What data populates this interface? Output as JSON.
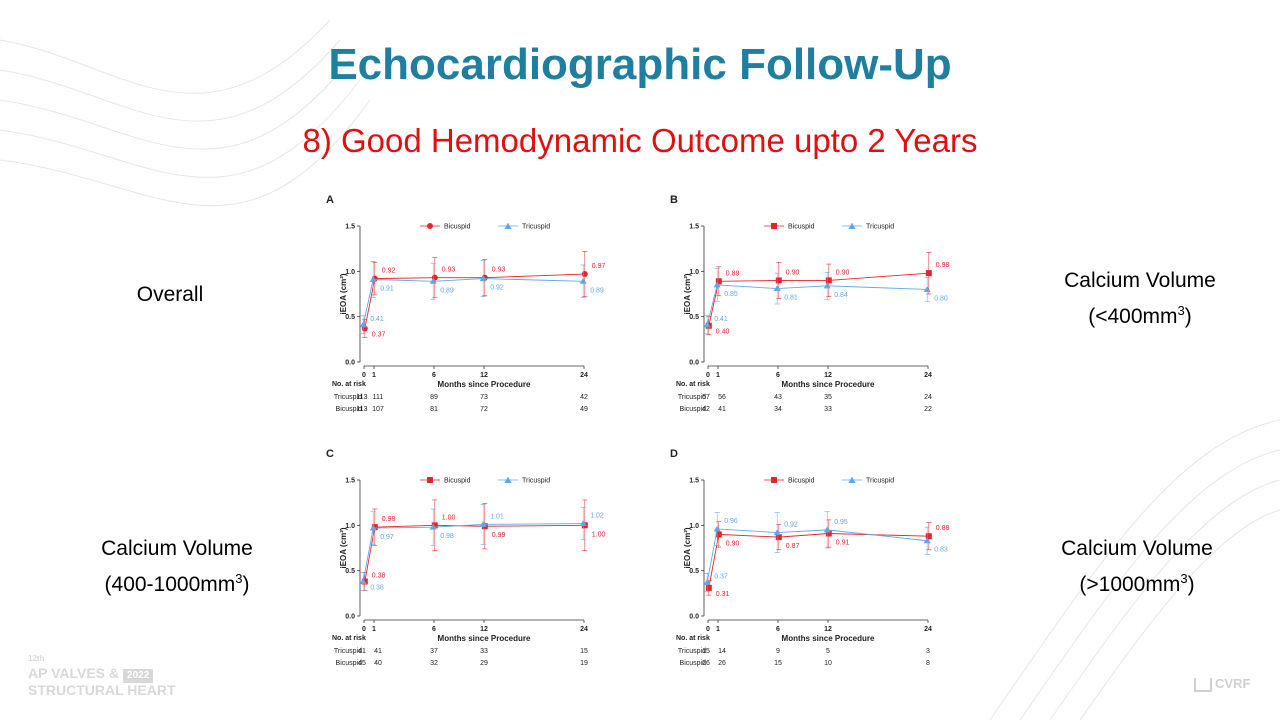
{
  "slide": {
    "title": "Echocardiographic Follow-Up",
    "subtitle": "8) Good Hemodynamic Outcome upto 2 Years"
  },
  "labels": {
    "overall": "Overall",
    "b_line1": "Calcium Volume",
    "b_pre": "(<400mm",
    "b_sup": "3",
    "b_post": ")",
    "c_line1": "Calcium Volume",
    "c_pre": "(400-1000mm",
    "c_sup": "3",
    "c_post": ")",
    "d_line1": "Calcium Volume",
    "d_pre": "(>1000mm",
    "d_sup": "3",
    "d_post": ")"
  },
  "branding": {
    "event_edition": "12th",
    "event_name_1": "AP VALVES &",
    "event_year": "2022",
    "event_name_2": "STRUCTURAL HEART",
    "cvrf": "CVRF"
  },
  "colors": {
    "bicuspid": "#e8232a",
    "tricuspid": "#5ea8e8",
    "title": "#1f7fa0",
    "subtitle": "#e01010"
  },
  "chart_data": [
    {
      "panel": "A",
      "type": "line",
      "ylabel": "iEOA (cm²)",
      "xlabel": "Months since Procedure",
      "x": [
        0,
        1,
        6,
        12,
        24
      ],
      "yticks": [
        "0.0",
        "0.5",
        "1.0",
        "1.5"
      ],
      "ylim": [
        0,
        1.5
      ],
      "marker_bicuspid": "circle",
      "series": [
        {
          "name": "Bicuspid",
          "values": [
            0.37,
            0.92,
            0.93,
            0.93,
            0.97
          ],
          "err": [
            0.1,
            0.18,
            0.22,
            0.2,
            0.25
          ],
          "labels": [
            "0.37",
            "0.92",
            "0.93",
            "0.93",
            "0.97"
          ]
        },
        {
          "name": "Tricuspid",
          "values": [
            0.41,
            0.91,
            0.89,
            0.92,
            0.89
          ],
          "err": [
            0.1,
            0.2,
            0.2,
            0.2,
            0.18
          ],
          "labels": [
            "0.41",
            "0.91",
            "0.89",
            "0.92",
            "0.89"
          ]
        }
      ],
      "risk_title": "No. at risk",
      "risk": [
        {
          "name": "Tricuspid",
          "values": [
            "113",
            "111",
            "89",
            "73",
            "42"
          ]
        },
        {
          "name": "Bicuspid",
          "values": [
            "113",
            "107",
            "81",
            "72",
            "49"
          ]
        }
      ]
    },
    {
      "panel": "B",
      "type": "line",
      "ylabel": "iEOA (cm²)",
      "xlabel": "Months since Procedure",
      "x": [
        0,
        1,
        6,
        12,
        24
      ],
      "yticks": [
        "0.0",
        "0.5",
        "1.0",
        "1.5"
      ],
      "ylim": [
        0,
        1.5
      ],
      "marker_bicuspid": "square",
      "series": [
        {
          "name": "Bicuspid",
          "values": [
            0.4,
            0.89,
            0.9,
            0.9,
            0.98
          ],
          "err": [
            0.1,
            0.16,
            0.2,
            0.18,
            0.23
          ],
          "labels": [
            "0.40",
            "0.89",
            "0.90",
            "0.90",
            "0.98"
          ]
        },
        {
          "name": "Tricuspid",
          "values": [
            0.41,
            0.85,
            0.81,
            0.84,
            0.8
          ],
          "err": [
            0.1,
            0.18,
            0.17,
            0.15,
            0.13
          ],
          "labels": [
            "0.41",
            "0.85",
            "0.81",
            "0.84",
            "0.80"
          ]
        }
      ],
      "risk_title": "No. at risk",
      "risk": [
        {
          "name": "Tricuspid",
          "values": [
            "57",
            "56",
            "43",
            "35",
            "24"
          ]
        },
        {
          "name": "Bicuspid",
          "values": [
            "42",
            "41",
            "34",
            "33",
            "22"
          ]
        }
      ]
    },
    {
      "panel": "C",
      "type": "line",
      "ylabel": "iEOA (cm²)",
      "xlabel": "Months since Procedure",
      "x": [
        0,
        1,
        6,
        12,
        24
      ],
      "yticks": [
        "0.0",
        "0.5",
        "1.0",
        "1.5"
      ],
      "ylim": [
        0,
        1.5
      ],
      "marker_bicuspid": "square",
      "series": [
        {
          "name": "Bicuspid",
          "values": [
            0.38,
            0.98,
            1.0,
            0.99,
            1.0
          ],
          "err": [
            0.1,
            0.2,
            0.28,
            0.25,
            0.28
          ],
          "labels": [
            "0.38",
            "0.98",
            "1.00",
            "0.99",
            "1.00"
          ]
        },
        {
          "name": "Tricuspid",
          "values": [
            0.38,
            0.97,
            0.98,
            1.01,
            1.02
          ],
          "err": [
            0.1,
            0.18,
            0.2,
            0.22,
            0.18
          ],
          "labels": [
            "0.38",
            "0.97",
            "0.98",
            "1.01",
            "1.02"
          ]
        }
      ],
      "risk_title": "No. at risk",
      "risk": [
        {
          "name": "Tricuspid",
          "values": [
            "41",
            "41",
            "37",
            "33",
            "15"
          ]
        },
        {
          "name": "Bicuspid",
          "values": [
            "45",
            "40",
            "32",
            "29",
            "19"
          ]
        }
      ]
    },
    {
      "panel": "D",
      "type": "line",
      "ylabel": "iEOA (cm²)",
      "xlabel": "Months since Procedure",
      "x": [
        0,
        1,
        6,
        12,
        24
      ],
      "yticks": [
        "0.0",
        "0.5",
        "1.0",
        "1.5"
      ],
      "ylim": [
        0,
        1.5
      ],
      "marker_bicuspid": "square",
      "series": [
        {
          "name": "Bicuspid",
          "values": [
            0.31,
            0.9,
            0.87,
            0.91,
            0.88
          ],
          "err": [
            0.08,
            0.14,
            0.14,
            0.15,
            0.15
          ],
          "labels": [
            "0.31",
            "0.90",
            "0.87",
            "0.91",
            "0.88"
          ]
        },
        {
          "name": "Tricuspid",
          "values": [
            0.37,
            0.96,
            0.92,
            0.95,
            0.83
          ],
          "err": [
            0.1,
            0.18,
            0.22,
            0.2,
            0.15
          ],
          "labels": [
            "0.37",
            "0.96",
            "0.92",
            "0.95",
            "0.83"
          ]
        }
      ],
      "risk_title": "No. at risk",
      "risk": [
        {
          "name": "Tricuspid",
          "values": [
            "15",
            "14",
            "9",
            "5",
            "3"
          ]
        },
        {
          "name": "Bicuspid",
          "values": [
            "26",
            "26",
            "15",
            "10",
            "8"
          ]
        }
      ]
    }
  ]
}
